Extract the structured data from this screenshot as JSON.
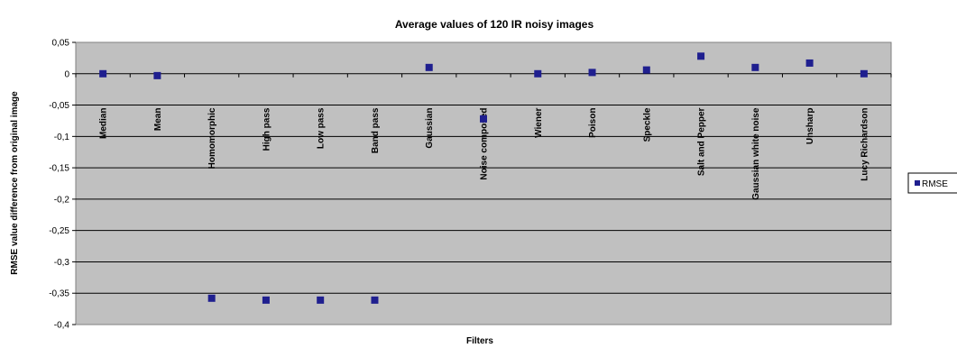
{
  "chart_data": {
    "type": "scatter",
    "title": "Average values of 120 IR noisy images",
    "xlabel": "Filters",
    "ylabel": "RMSE value difference from original image",
    "ylim": [
      -0.4,
      0.05
    ],
    "yticks": [
      0.05,
      0,
      -0.05,
      -0.1,
      -0.15,
      -0.2,
      -0.25,
      -0.3,
      -0.35,
      -0.4
    ],
    "ytick_labels": [
      "0,05",
      "0",
      "-0,05",
      "-0,1",
      "-0,15",
      "-0,2",
      "-0,25",
      "-0,3",
      "-0,35",
      "-0,4"
    ],
    "grid": true,
    "legend_position": "right",
    "categories": [
      "Median",
      "Mean",
      "Homomorphic",
      "High pass",
      "Low pass",
      "Band pass",
      "Gaussian",
      "Noise composed",
      "Wiener",
      "Poison",
      "Speckle",
      "Salt and Pepper",
      "Gaussian white noise",
      "Unsharp",
      "Lucy Richardson"
    ],
    "series": [
      {
        "name": "RMSE",
        "color": "#1f1f8f",
        "values": [
          0.0,
          -0.003,
          -0.358,
          -0.361,
          -0.361,
          -0.361,
          0.01,
          -0.072,
          0.0,
          0.002,
          0.006,
          0.028,
          0.01,
          0.017,
          0.0
        ]
      }
    ]
  },
  "colors": {
    "plot_background": "#c0c0c0",
    "gridline": "#000000",
    "marker": "#1f1f8f"
  }
}
